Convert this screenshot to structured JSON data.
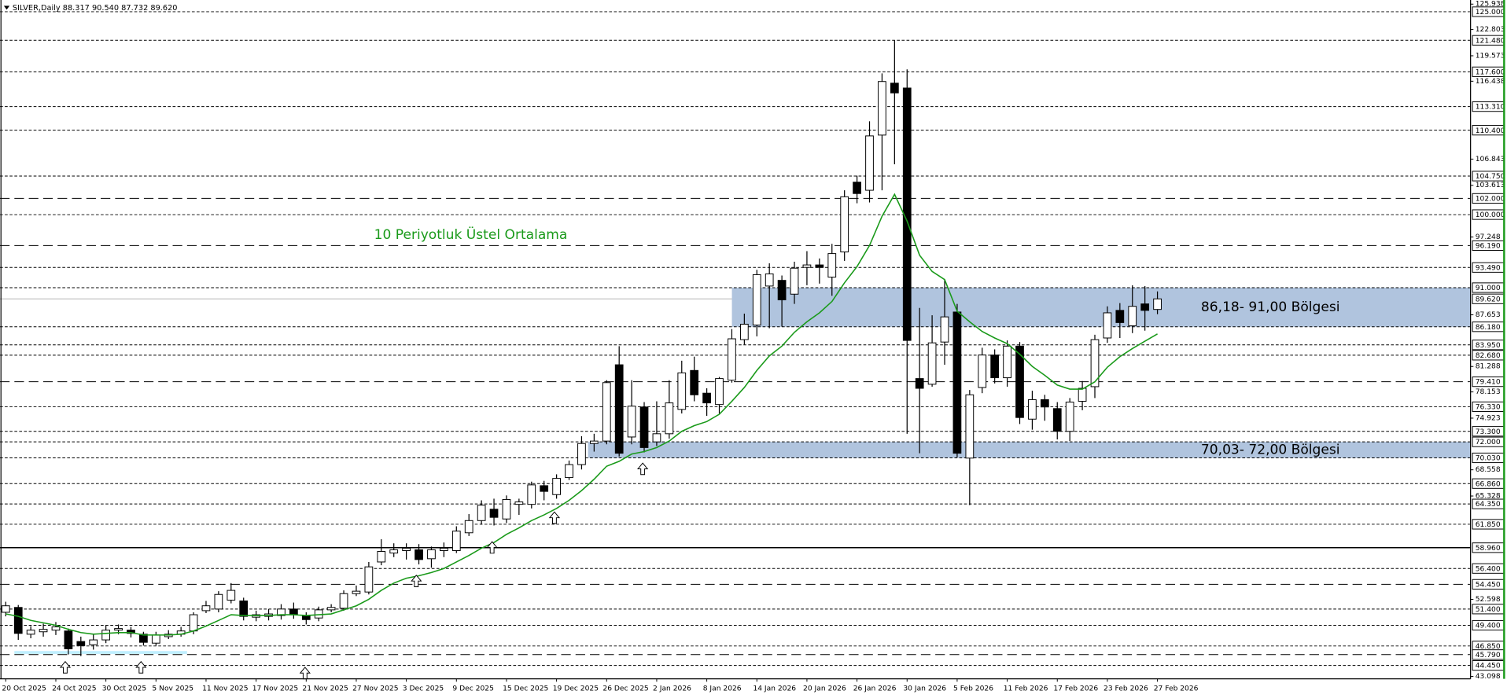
{
  "header": "SILVER,Daily 88.317 90.540 87.732 89.620",
  "chart_data": {
    "type": "candlestick",
    "categories": [
      "20 Oct 2025",
      null,
      null,
      null,
      "24 Oct 2025",
      null,
      null,
      null,
      "30 Oct 2025",
      null,
      null,
      null,
      "5 Nov 2025",
      null,
      null,
      null,
      "11 Nov 2025",
      null,
      null,
      null,
      "17 Nov 2025",
      null,
      null,
      null,
      "21 Nov 2025",
      null,
      null,
      null,
      "27 Nov 2025",
      null,
      null,
      null,
      "3 Dec 2025",
      null,
      null,
      null,
      "9 Dec 2025",
      null,
      null,
      null,
      "15 Dec 2025",
      null,
      null,
      null,
      "19 Dec 2025",
      null,
      null,
      null,
      "26 Dec 2025",
      null,
      null,
      null,
      "2 Jan 2026",
      null,
      null,
      null,
      "8 Jan 2026",
      null,
      null,
      null,
      "14 Jan 2026",
      null,
      null,
      null,
      "20 Jan 2026",
      null,
      null,
      null,
      "26 Jan 2026",
      null,
      null,
      null,
      "30 Jan 2026",
      null,
      null,
      null,
      "5 Feb 2026",
      null,
      null,
      null,
      "11 Feb 2026",
      null,
      null,
      null,
      "17 Feb 2026",
      null,
      null,
      null,
      "23 Feb 2026",
      null,
      null,
      null,
      "27 Feb 2026"
    ],
    "open": [
      51.0,
      51.6,
      48.3,
      48.6,
      48.8,
      48.7,
      47.4,
      47.0,
      47.6,
      48.8,
      48.8,
      48.3,
      47.2,
      48.0,
      48.3,
      48.7,
      51.2,
      51.4,
      52.5,
      52.4,
      50.4,
      50.5,
      50.6,
      51.4,
      50.6,
      50.3,
      51.3,
      51.5,
      53.3,
      53.5,
      57.2,
      58.3,
      58.6,
      58.7,
      57.6,
      58.6,
      58.6,
      60.8,
      62.3,
      63.7,
      62.5,
      64.3,
      64.3,
      66.6,
      65.5,
      67.6,
      69.2,
      71.8,
      72.1,
      81.5,
      72.6,
      76.3,
      72.0,
      73.0,
      76.0,
      80.8,
      78.0,
      76.6,
      79.6,
      84.6,
      86.4,
      91.2,
      91.9,
      90.2,
      93.5,
      93.8,
      92.3,
      95.4,
      104.0,
      103.0,
      109.8,
      116.2,
      115.6,
      79.8,
      79.1,
      84.3,
      88.0,
      70.0,
      78.7,
      82.7,
      79.9,
      83.8,
      74.8,
      77.2,
      76.1,
      73.3,
      77.0,
      78.8,
      84.8,
      88.2,
      86.3,
      89.0,
      88.317
    ],
    "high": [
      52.3,
      51.9,
      49.3,
      49.6,
      49.8,
      49.0,
      48.0,
      48.3,
      49.4,
      49.5,
      49.2,
      48.6,
      48.6,
      48.8,
      49.2,
      51.0,
      52.4,
      53.6,
      54.6,
      52.8,
      51.2,
      51.4,
      52.0,
      52.2,
      51.0,
      51.7,
      52.0,
      53.7,
      54.3,
      57.2,
      60.0,
      59.5,
      59.5,
      59.4,
      59.1,
      59.6,
      61.6,
      63.1,
      64.8,
      65.0,
      65.4,
      65.0,
      67.1,
      67.2,
      68.0,
      69.7,
      72.7,
      73.0,
      79.6,
      83.8,
      79.6,
      76.9,
      77.0,
      79.6,
      82.0,
      82.5,
      78.6,
      80.0,
      85.9,
      87.8,
      93.2,
      94.0,
      92.5,
      94.2,
      95.5,
      94.6,
      96.4,
      103.0,
      104.8,
      111.5,
      117.4,
      121.5,
      117.9,
      88.5,
      87.6,
      92.0,
      89.0,
      78.4,
      83.6,
      83.4,
      84.5,
      84.3,
      78.3,
      77.8,
      76.9,
      77.4,
      79.5,
      85.2,
      88.7,
      89.1,
      91.3,
      91.2,
      90.54
    ],
    "low": [
      50.5,
      47.6,
      47.8,
      48.0,
      48.2,
      45.8,
      45.6,
      46.4,
      47.2,
      48.3,
      47.9,
      46.9,
      46.9,
      47.7,
      48.0,
      48.3,
      50.9,
      51.0,
      52.1,
      50.0,
      49.9,
      50.0,
      50.1,
      50.2,
      49.5,
      49.9,
      51.0,
      51.2,
      53.0,
      53.2,
      56.8,
      57.8,
      57.5,
      56.9,
      56.5,
      57.8,
      58.3,
      60.4,
      61.8,
      61.7,
      62.0,
      63.0,
      63.8,
      64.8,
      65.0,
      67.3,
      68.6,
      70.8,
      71.7,
      70.2,
      71.7,
      70.7,
      71.5,
      72.4,
      75.5,
      77.0,
      75.2,
      75.5,
      79.3,
      84.0,
      85.0,
      86.0,
      86.2,
      89.0,
      91.3,
      91.5,
      90.0,
      94.3,
      101.4,
      101.5,
      103.0,
      106.2,
      73.0,
      70.6,
      78.8,
      81.5,
      70.1,
      64.2,
      78.0,
      79.2,
      78.8,
      74.2,
      73.5,
      74.6,
      72.3,
      72.1,
      75.9,
      77.4,
      84.2,
      84.8,
      85.4,
      85.7,
      87.732
    ],
    "close": [
      51.8,
      48.4,
      48.8,
      48.9,
      49.2,
      46.5,
      46.9,
      47.6,
      48.8,
      49.0,
      48.4,
      47.3,
      48.2,
      48.3,
      48.7,
      50.7,
      51.8,
      53.2,
      53.7,
      50.5,
      50.7,
      50.8,
      51.4,
      50.7,
      50.1,
      51.3,
      51.6,
      53.3,
      53.6,
      56.6,
      58.5,
      58.7,
      58.9,
      57.5,
      58.7,
      58.9,
      61.0,
      62.3,
      64.2,
      62.7,
      64.9,
      64.6,
      66.7,
      65.9,
      67.5,
      69.2,
      71.8,
      72.1,
      79.3,
      70.6,
      76.4,
      71.3,
      73.0,
      76.8,
      80.5,
      77.8,
      76.8,
      79.8,
      84.7,
      86.5,
      92.6,
      92.7,
      89.5,
      93.4,
      93.8,
      93.5,
      95.2,
      102.2,
      102.6,
      109.7,
      116.4,
      115.0,
      84.5,
      78.6,
      84.2,
      87.4,
      70.6,
      77.8,
      82.7,
      79.9,
      83.8,
      75.0,
      77.2,
      76.3,
      73.3,
      76.9,
      78.6,
      84.6,
      87.9,
      86.7,
      88.7,
      88.2,
      89.62
    ],
    "up_color": "#ffffff",
    "down_color": "#000000",
    "ema": {
      "label": "10 Periyotluk Üstel Ortalama",
      "color": "#1a9a1a",
      "values": [
        50.8,
        50.5,
        50.0,
        49.7,
        49.4,
        48.9,
        48.5,
        48.3,
        48.4,
        48.5,
        48.5,
        48.2,
        48.2,
        48.2,
        48.3,
        48.7,
        49.3,
        50.0,
        50.7,
        50.6,
        50.6,
        50.6,
        50.7,
        50.7,
        50.6,
        50.7,
        50.8,
        51.3,
        51.8,
        52.6,
        53.7,
        54.6,
        55.2,
        55.5,
        55.9,
        56.4,
        57.2,
        58.0,
        58.9,
        59.6,
        60.6,
        61.4,
        62.3,
        63.0,
        63.8,
        64.8,
        66.0,
        67.4,
        69.0,
        69.6,
        70.5,
        70.8,
        71.3,
        72.1,
        73.3,
        74.0,
        74.5,
        75.4,
        77.0,
        78.7,
        80.8,
        82.6,
        83.8,
        85.5,
        86.8,
        87.9,
        89.3,
        91.6,
        93.6,
        96.2,
        99.8,
        102.5,
        99.2,
        95.0,
        93.0,
        92.0,
        88.1,
        86.8,
        85.6,
        84.8,
        84.1,
        82.8,
        81.3,
        80.2,
        79.0,
        78.5,
        78.5,
        79.4,
        81.2,
        82.5,
        83.5,
        84.4,
        85.3
      ]
    },
    "ylim": [
      43.098,
      125.938
    ],
    "yticks": [
      125.938,
      122.803,
      119.573,
      116.438,
      106.843,
      103.613,
      97.248,
      87.653,
      81.288,
      78.153,
      74.923,
      68.558,
      65.328,
      52.598,
      43.098
    ],
    "levels": [
      {
        "value": 125,
        "label": "125.000",
        "style": "dotted"
      },
      {
        "value": 121.48,
        "label": "121.480",
        "style": "dotted"
      },
      {
        "value": 117.6,
        "label": "117.600",
        "style": "dotted"
      },
      {
        "value": 113.31,
        "label": "113.310",
        "style": "dotted"
      },
      {
        "value": 110.4,
        "label": "110.400",
        "style": "dotted"
      },
      {
        "value": 104.75,
        "label": "104.750",
        "style": "dotted"
      },
      {
        "value": 102,
        "label": "102.000",
        "style": "dashed"
      },
      {
        "value": 100,
        "label": "100.000",
        "style": "dotted"
      },
      {
        "value": 96.19,
        "label": "96.190",
        "style": "dashed"
      },
      {
        "value": 93.49,
        "label": "93.490",
        "style": "dotted"
      },
      {
        "value": 91,
        "label": "91.000",
        "style": "dotted"
      },
      {
        "value": 86.18,
        "label": "86.180",
        "style": "dotted"
      },
      {
        "value": 83.95,
        "label": "83.950",
        "style": "dotted"
      },
      {
        "value": 82.68,
        "label": "82.680",
        "style": "dotted"
      },
      {
        "value": 79.41,
        "label": "79.410",
        "style": "dashed"
      },
      {
        "value": 76.33,
        "label": "76.330",
        "style": "dotted"
      },
      {
        "value": 73.3,
        "label": "73.300",
        "style": "dotted"
      },
      {
        "value": 72,
        "label": "72.000",
        "style": "dotted"
      },
      {
        "value": 70.03,
        "label": "70.030",
        "style": "dotted"
      },
      {
        "value": 66.86,
        "label": "66.860",
        "style": "dotted"
      },
      {
        "value": 64.35,
        "label": "64.350",
        "style": "dotted"
      },
      {
        "value": 61.85,
        "label": "61.850",
        "style": "dotted"
      },
      {
        "value": 58.96,
        "label": "58.960",
        "style": "solid"
      },
      {
        "value": 56.4,
        "label": "56.400",
        "style": "dotted"
      },
      {
        "value": 54.45,
        "label": "54.450",
        "style": "dashed"
      },
      {
        "value": 51.4,
        "label": "51.400",
        "style": "dotted"
      },
      {
        "value": 49.4,
        "label": "49.400",
        "style": "dotted"
      },
      {
        "value": 46.85,
        "label": "46.850",
        "style": "dotted"
      },
      {
        "value": 45.79,
        "label": "45.790",
        "style": "dashed"
      },
      {
        "value": 44.45,
        "label": "44.450",
        "style": "dotted"
      }
    ],
    "current_price": {
      "value": 89.62,
      "label": "89.620"
    },
    "zones": [
      {
        "from": 86.18,
        "to": 91.0,
        "label": "86,18- 91,00 Bölgesi",
        "color": "#b0c4de"
      },
      {
        "from": 70.03,
        "to": 72.0,
        "label": "70,03- 72,00 Bölgesi",
        "color": "#b0c4de"
      }
    ]
  }
}
